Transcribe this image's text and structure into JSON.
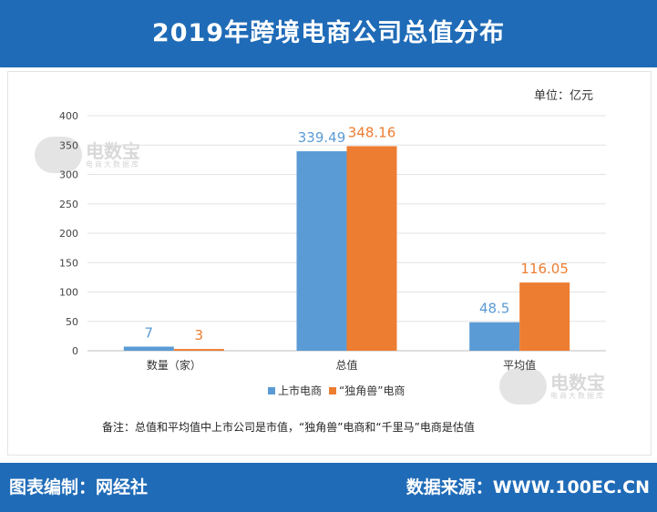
{
  "header": {
    "title": "2019年跨境电商公司总值分布"
  },
  "unit_label": "单位：亿元",
  "watermark": {
    "brand": "电数宝",
    "sub": "电商大数据库",
    "logo": "EDT"
  },
  "chart_data": {
    "type": "bar",
    "title": "2019年跨境电商公司总值分布",
    "categories": [
      "数量（家）",
      "总值",
      "平均值"
    ],
    "series": [
      {
        "name": "上市电商",
        "values": [
          7,
          339.49,
          48.5
        ],
        "color": "#5b9bd5",
        "labels": [
          "7",
          "339.49",
          "48.5"
        ]
      },
      {
        "name": "“独角兽”电商",
        "values": [
          3,
          348.16,
          116.05
        ],
        "color": "#ed7d31",
        "labels": [
          "3",
          "348.16",
          "116.05"
        ]
      }
    ],
    "ylim": [
      0,
      400
    ],
    "yticks": [
      0,
      50,
      100,
      150,
      200,
      250,
      300,
      350,
      400
    ],
    "grid": true,
    "legend": "bottom-center"
  },
  "note": "备注：总值和平均值中上市公司是市值，“独角兽”电商和“千里马”电商是估值",
  "footer": {
    "left": "图表编制：网经社",
    "right": "数据来源：WWW.100EC.CN"
  }
}
